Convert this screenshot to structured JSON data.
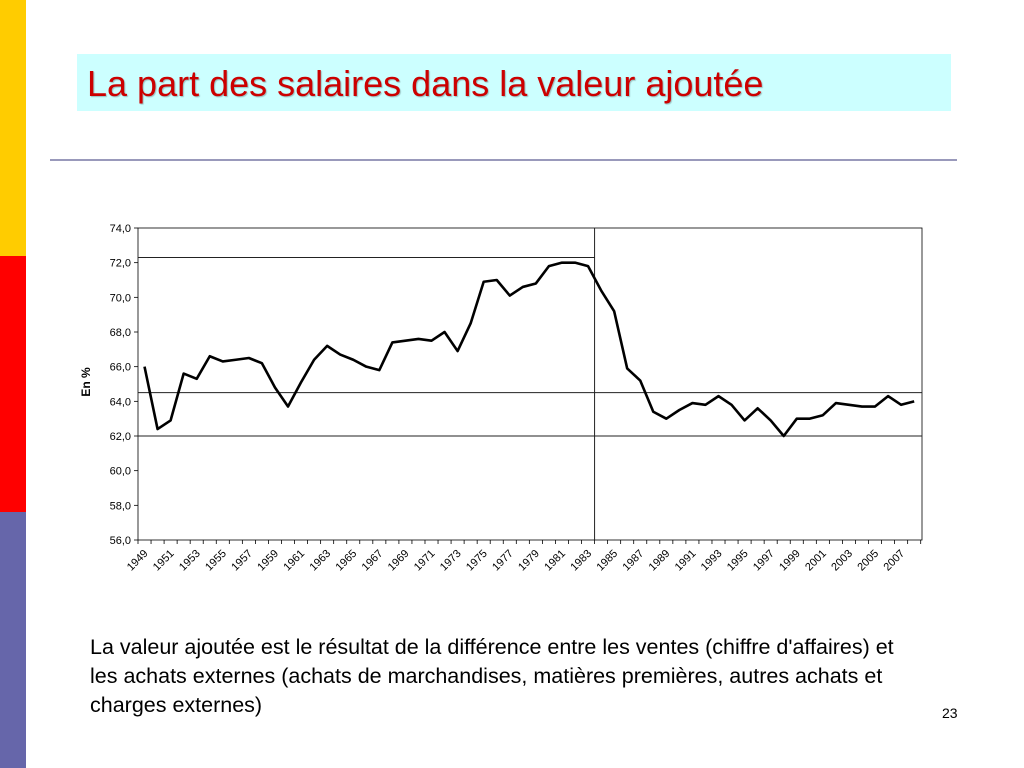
{
  "slide": {
    "title": "La part des salaires dans la valeur ajoutée",
    "caption": "La valeur ajoutée est le résultat de la différence entre les ventes (chiffre d'affaires) et les achats externes (achats de marchandises, matières premières, autres achats et charges externes)",
    "page_number": "23",
    "colors": {
      "band_yellow": "#ffcc00",
      "band_red": "#ff0000",
      "band_blue": "#6666aa",
      "title_background": "#ccffff",
      "title_text": "#cc0000"
    }
  },
  "chart_data": {
    "type": "line",
    "ylabel": "En %",
    "xlabel": "",
    "ylim": [
      56.0,
      74.0
    ],
    "y_ticks": [
      "56,0",
      "58,0",
      "60,0",
      "62,0",
      "64,0",
      "66,0",
      "68,0",
      "70,0",
      "72,0",
      "74,0"
    ],
    "x_tick_labels": [
      "1949",
      "1951",
      "1953",
      "1955",
      "1957",
      "1959",
      "1961",
      "1963",
      "1965",
      "1967",
      "1969",
      "1971",
      "1973",
      "1975",
      "1977",
      "1979",
      "1981",
      "1983",
      "1985",
      "1987",
      "1989",
      "1991",
      "1993",
      "1995",
      "1997",
      "1999",
      "2001",
      "2003",
      "2005",
      "2007"
    ],
    "grid": false,
    "reference_lines": {
      "horizontal": [
        72.3,
        64.5,
        62.0
      ],
      "vertical": [
        1983.5
      ]
    },
    "series": [
      {
        "color": "#000000",
        "x": [
          1949,
          1950,
          1951,
          1952,
          1953,
          1954,
          1955,
          1956,
          1957,
          1958,
          1959,
          1960,
          1961,
          1962,
          1963,
          1964,
          1965,
          1966,
          1967,
          1968,
          1969,
          1970,
          1971,
          1972,
          1973,
          1974,
          1975,
          1976,
          1977,
          1978,
          1979,
          1980,
          1981,
          1982,
          1983,
          1984,
          1985,
          1986,
          1987,
          1988,
          1989,
          1990,
          1991,
          1992,
          1993,
          1994,
          1995,
          1996,
          1997,
          1998,
          1999,
          2000,
          2001,
          2002,
          2003,
          2004,
          2005,
          2006,
          2007,
          2008
        ],
        "values": [
          66.0,
          62.4,
          62.9,
          65.6,
          65.3,
          66.6,
          66.3,
          66.4,
          66.5,
          66.2,
          64.8,
          63.7,
          65.1,
          66.4,
          67.2,
          66.7,
          66.4,
          66.0,
          65.8,
          67.4,
          67.5,
          67.6,
          67.5,
          68.0,
          66.9,
          68.5,
          70.9,
          71.0,
          70.1,
          70.6,
          70.8,
          71.8,
          72.0,
          72.0,
          71.8,
          70.4,
          69.2,
          65.9,
          65.2,
          63.4,
          63.0,
          63.5,
          63.9,
          63.8,
          64.3,
          63.8,
          62.9,
          63.6,
          62.9,
          62.0,
          63.0,
          63.0,
          63.2,
          63.9,
          63.8,
          63.7,
          63.7,
          64.3,
          63.8,
          64.0
        ]
      }
    ]
  }
}
